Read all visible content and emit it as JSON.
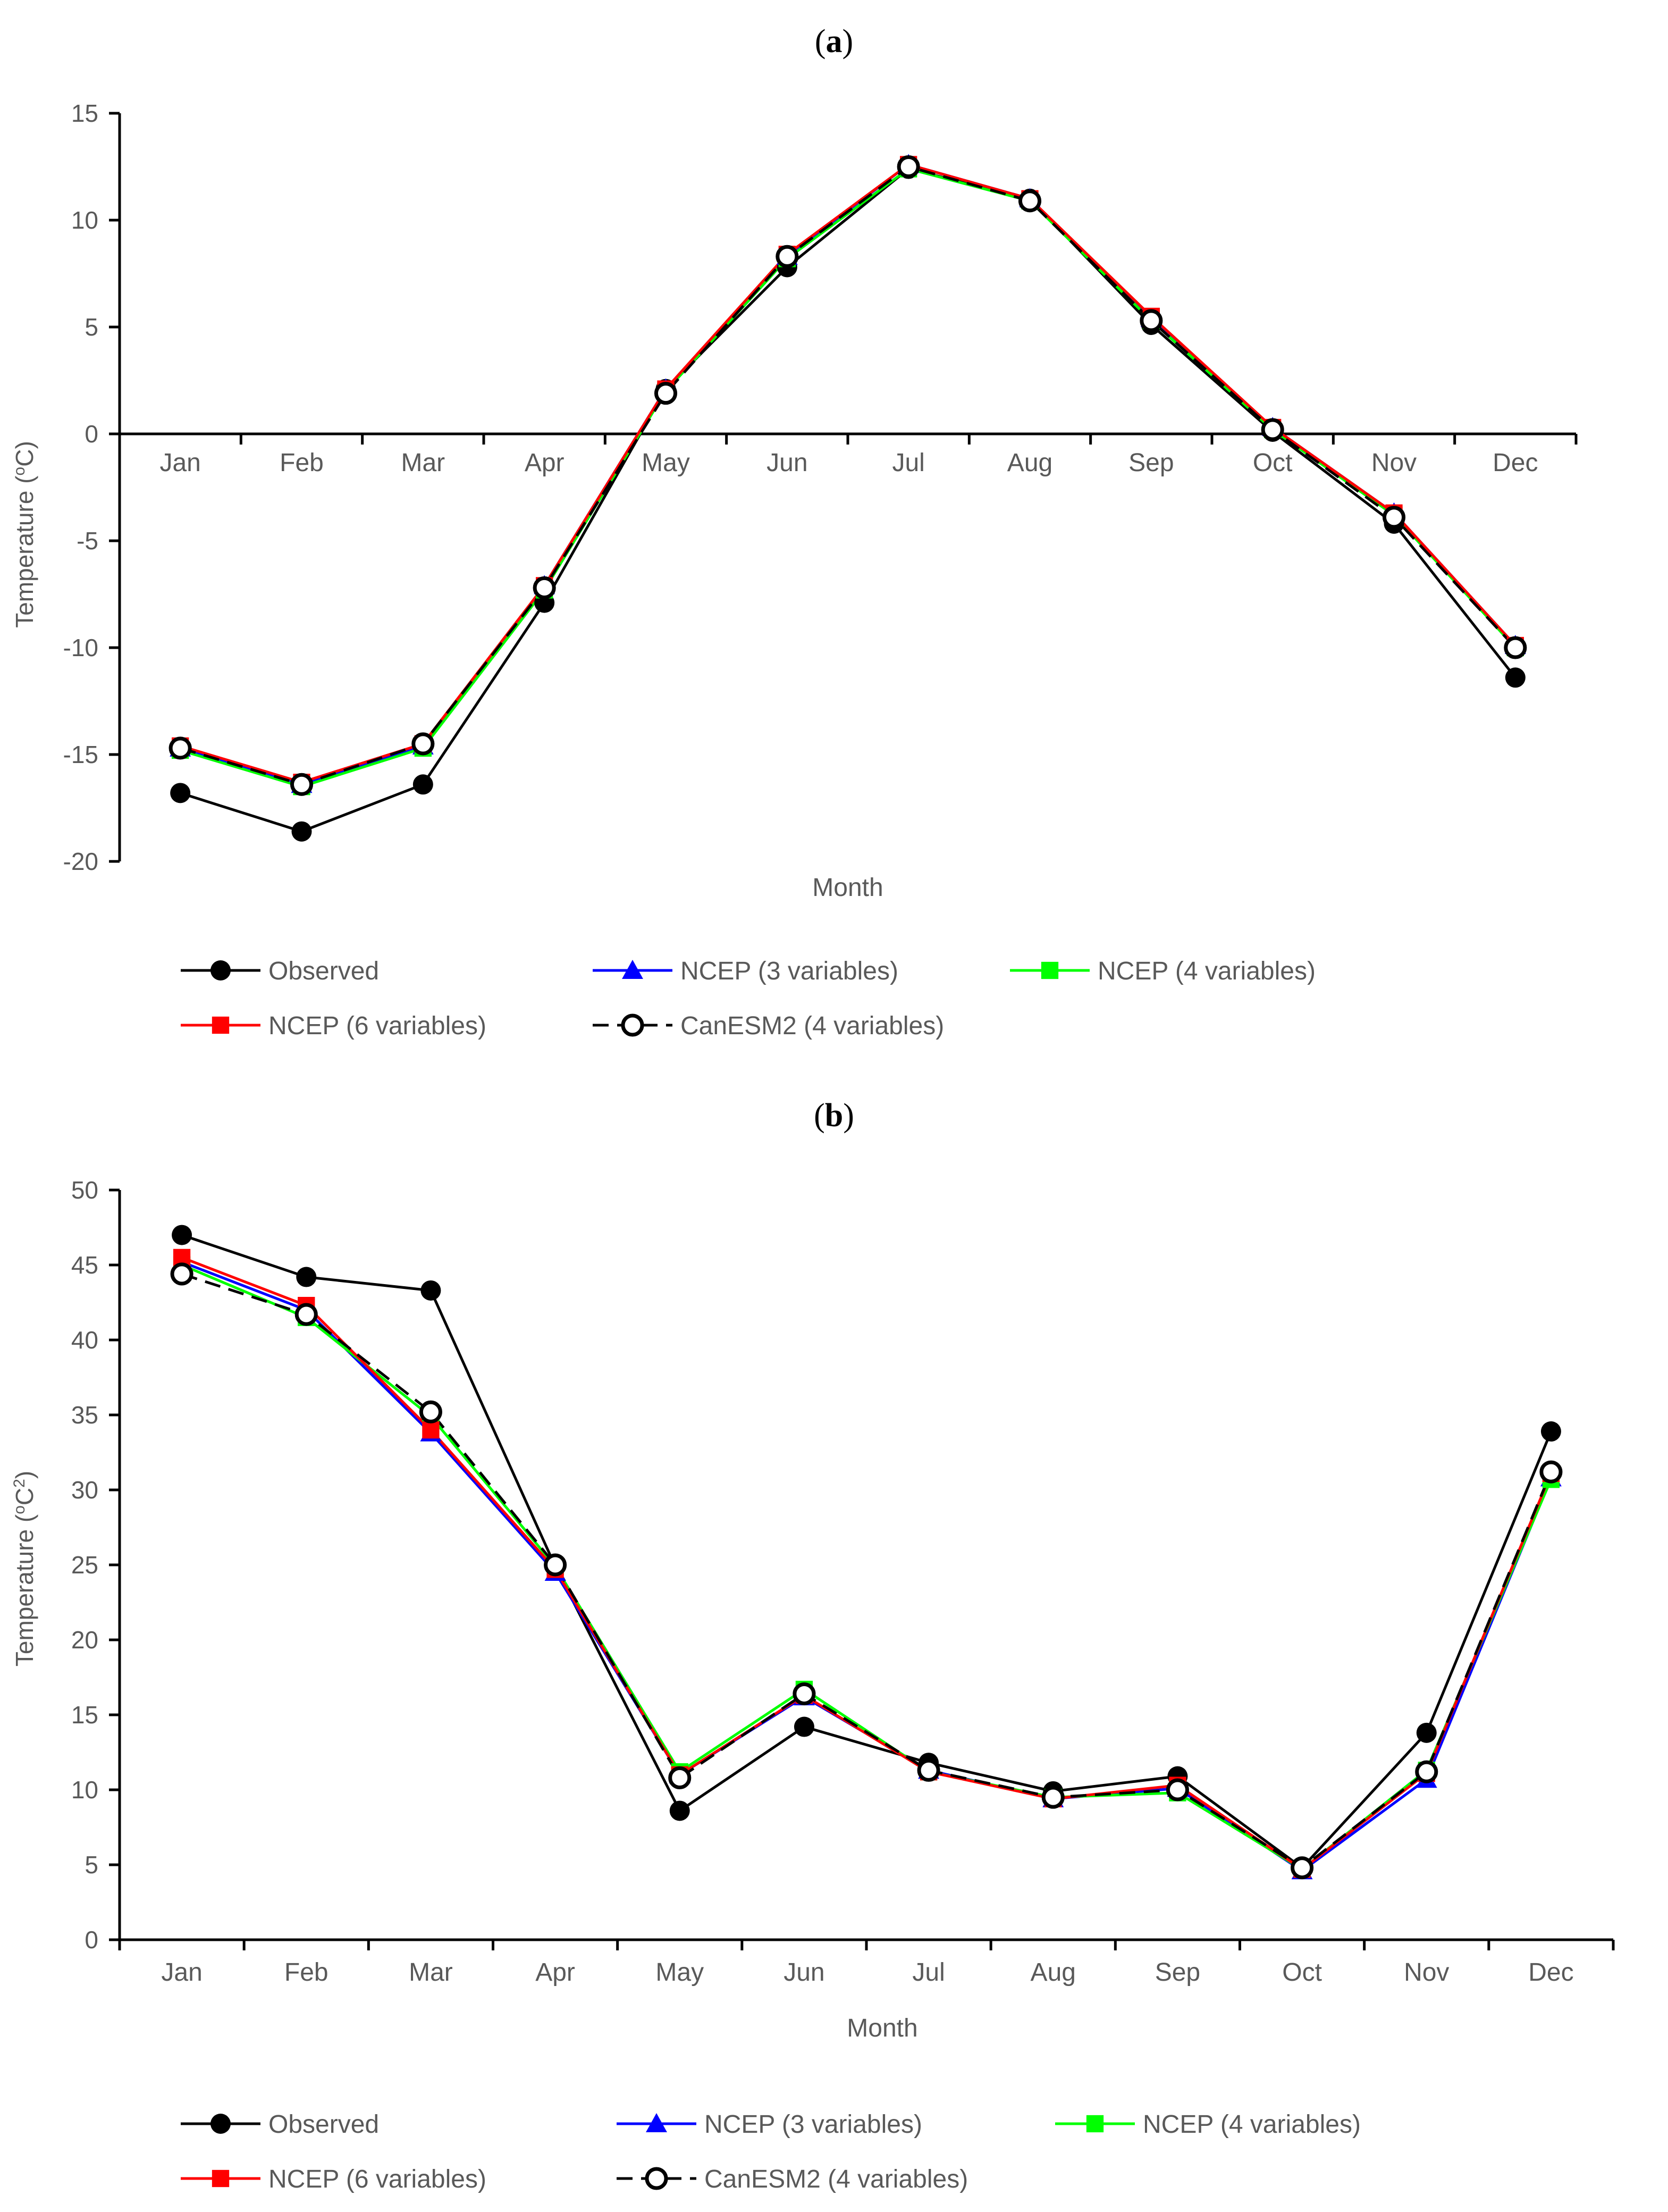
{
  "chart_data": [
    {
      "id": "a",
      "panel_label_open": "(",
      "panel_label_letter": "a",
      "panel_label_close": ")",
      "type": "line",
      "xlabel": "Month",
      "ylabel": "Temperature (°C)",
      "ylabel_parts": [
        "Temperature (",
        "o",
        "C)"
      ],
      "ylim": [
        -20,
        15
      ],
      "ytick_step": 5,
      "yticks": [
        "15",
        "10",
        "5",
        "0",
        "-5",
        "-10",
        "-15",
        "-20"
      ],
      "x_axis_at_zero": true,
      "grid": false,
      "categories": [
        "Jan",
        "Feb",
        "Mar",
        "Apr",
        "May",
        "Jun",
        "Jul",
        "Aug",
        "Sep",
        "Oct",
        "Nov",
        "Dec"
      ],
      "series": [
        {
          "name": "Observed",
          "color": "#000000",
          "marker": "circle",
          "dashed": false,
          "values": [
            -16.8,
            -18.6,
            -16.4,
            -7.9,
            2.1,
            7.8,
            12.4,
            11.0,
            5.1,
            0.1,
            -4.2,
            -11.4
          ]
        },
        {
          "name": "NCEP (3 variables)",
          "color": "#0000ff",
          "marker": "triangle",
          "dashed": false,
          "values": [
            -14.7,
            -16.4,
            -14.6,
            -7.1,
            2.1,
            8.3,
            12.6,
            11.0,
            5.4,
            0.3,
            -3.7,
            -9.9
          ]
        },
        {
          "name": "NCEP (4 variables)",
          "color": "#00ff00",
          "marker": "square",
          "dashed": false,
          "values": [
            -14.8,
            -16.5,
            -14.7,
            -7.3,
            2.0,
            8.2,
            12.4,
            10.9,
            5.3,
            0.2,
            -3.8,
            -10.0
          ]
        },
        {
          "name": "NCEP (6 variables)",
          "color": "#ff0000",
          "marker": "square",
          "dashed": false,
          "values": [
            -14.6,
            -16.3,
            -14.5,
            -7.1,
            2.1,
            8.4,
            12.6,
            11.0,
            5.5,
            0.3,
            -3.7,
            -9.9
          ]
        },
        {
          "name": "CanESM2 (4 variables)",
          "color": "#000000",
          "marker": "open-circle",
          "dashed": true,
          "values": [
            -14.7,
            -16.4,
            -14.5,
            -7.2,
            1.9,
            8.3,
            12.5,
            10.9,
            5.3,
            0.2,
            -3.9,
            -10.0
          ]
        }
      ]
    },
    {
      "id": "b",
      "panel_label_open": "(",
      "panel_label_letter": "b",
      "panel_label_close": ")",
      "type": "line",
      "xlabel": "Month",
      "ylabel": "Temperature (°C²)",
      "ylabel_parts": [
        "Temperature (",
        "o",
        "C",
        "2",
        ")"
      ],
      "ylim": [
        0,
        50
      ],
      "ytick_step": 5,
      "yticks": [
        "50",
        "45",
        "40",
        "35",
        "30",
        "25",
        "20",
        "15",
        "10",
        "5",
        "0"
      ],
      "x_axis_at_zero": false,
      "grid": false,
      "categories": [
        "Jan",
        "Feb",
        "Mar",
        "Apr",
        "May",
        "Jun",
        "Jul",
        "Aug",
        "Sep",
        "Oct",
        "Nov",
        "Dec"
      ],
      "series": [
        {
          "name": "Observed",
          "color": "#000000",
          "marker": "circle",
          "dashed": false,
          "values": [
            47.0,
            44.2,
            43.3,
            24.9,
            8.6,
            14.2,
            11.8,
            9.9,
            10.9,
            4.8,
            13.8,
            33.9
          ]
        },
        {
          "name": "NCEP (3 variables)",
          "color": "#0000ff",
          "marker": "triangle",
          "dashed": false,
          "values": [
            45.2,
            42.0,
            33.8,
            24.5,
            11.0,
            16.2,
            11.3,
            9.4,
            10.1,
            4.6,
            10.7,
            30.8
          ]
        },
        {
          "name": "NCEP (4 variables)",
          "color": "#00ff00",
          "marker": "square",
          "dashed": false,
          "values": [
            45.0,
            41.5,
            34.9,
            24.9,
            11.2,
            16.7,
            11.2,
            9.5,
            9.8,
            4.7,
            11.3,
            30.7
          ]
        },
        {
          "name": "NCEP (6 variables)",
          "color": "#ff0000",
          "marker": "square",
          "dashed": false,
          "values": [
            45.5,
            42.3,
            34.0,
            24.7,
            11.0,
            16.3,
            11.2,
            9.4,
            10.3,
            4.7,
            11.1,
            31.1
          ]
        },
        {
          "name": "CanESM2 (4 variables)",
          "color": "#000000",
          "marker": "open-circle",
          "dashed": true,
          "values": [
            44.4,
            41.7,
            35.2,
            25.0,
            10.8,
            16.4,
            11.3,
            9.5,
            10.0,
            4.8,
            11.2,
            31.2
          ]
        }
      ]
    }
  ]
}
